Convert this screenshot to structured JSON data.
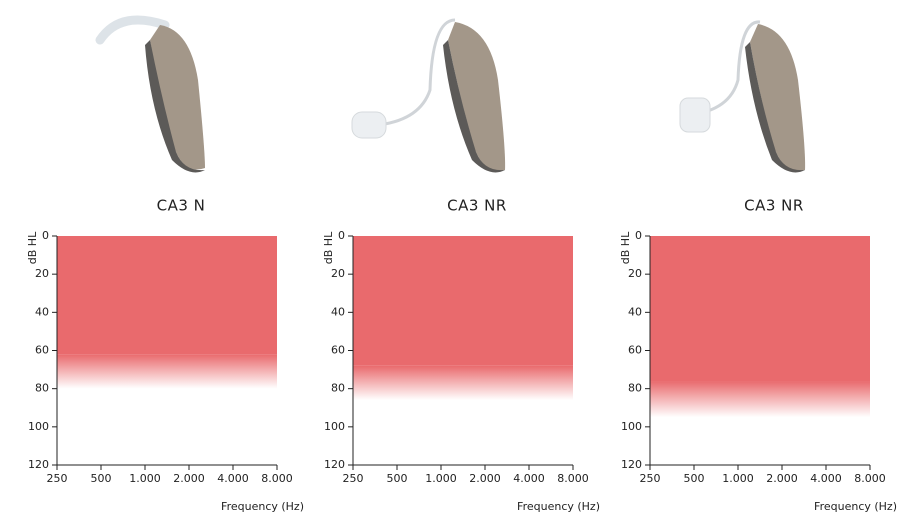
{
  "chart_data": [
    {
      "type": "range",
      "title": "CA3 N",
      "xlabel": "Frequency (Hz)",
      "ylabel": "dB HL",
      "log_x": true,
      "color": "#e96a6d",
      "xlim": [
        250,
        8000
      ],
      "xticks": [
        250,
        500,
        {
          "value": 1000,
          "label": "1.000"
        },
        {
          "value": 2000,
          "label": "2.000"
        },
        {
          "value": 4000,
          "label": "4.000"
        },
        {
          "value": 8000,
          "label": "8.000"
        }
      ],
      "ylim": [
        120,
        0
      ],
      "yticks": [
        0,
        20,
        40,
        60,
        80,
        100,
        120
      ],
      "band": {
        "x": [
          250,
          8000
        ],
        "from": 0,
        "to": 62,
        "fade_to": 80
      }
    },
    {
      "type": "range",
      "title": "CA3 NR",
      "xlabel": "Frequency (Hz)",
      "ylabel": "dB HL",
      "log_x": true,
      "color": "#e96a6d",
      "xlim": [
        250,
        8000
      ],
      "xticks": [
        250,
        500,
        {
          "value": 1000,
          "label": "1.000"
        },
        {
          "value": 2000,
          "label": "2.000"
        },
        {
          "value": 4000,
          "label": "4.000"
        },
        {
          "value": 8000,
          "label": "8.000"
        }
      ],
      "ylim": [
        120,
        0
      ],
      "yticks": [
        0,
        20,
        40,
        60,
        80,
        100,
        120
      ],
      "band": {
        "x": [
          250,
          8000
        ],
        "from": 0,
        "to": 68,
        "fade_to": 86
      }
    },
    {
      "type": "range",
      "title": "CA3 NR",
      "xlabel": "Frequency (Hz)",
      "ylabel": "dB HL",
      "log_x": true,
      "color": "#e96a6d",
      "xlim": [
        250,
        8000
      ],
      "xticks": [
        250,
        500,
        {
          "value": 1000,
          "label": "1.000"
        },
        {
          "value": 2000,
          "label": "2.000"
        },
        {
          "value": 4000,
          "label": "4.000"
        },
        {
          "value": 8000,
          "label": "8.000"
        }
      ],
      "ylim": [
        120,
        0
      ],
      "yticks": [
        0,
        20,
        40,
        60,
        80,
        100,
        120
      ],
      "band": {
        "x": [
          250,
          8000
        ],
        "from": 0,
        "to": 76,
        "fade_to": 95
      }
    }
  ]
}
